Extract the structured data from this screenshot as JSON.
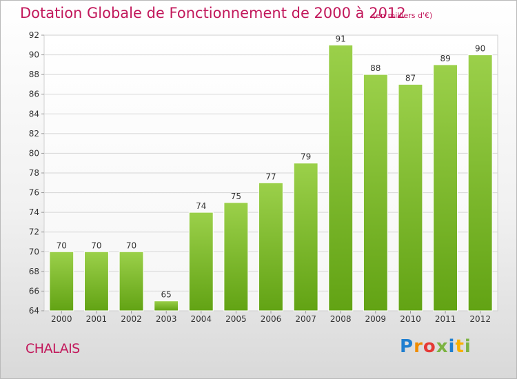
{
  "header": {
    "title": "Dotation Globale de Fonctionnement de 2000 à 2012",
    "subtitle": "(en milliers d'€)"
  },
  "footer": {
    "commune": "CHALAIS",
    "logo_text": [
      "P",
      "r",
      "o",
      "x",
      "i",
      "t",
      "i"
    ]
  },
  "colors": {
    "title": "#c2185b",
    "bar_top": "#9bd04a",
    "bar_bottom": "#62a314",
    "grid": "#d6d6d6",
    "axis_text": "#333333"
  },
  "chart_data": {
    "type": "bar",
    "title": "Dotation Globale de Fonctionnement de 2000 à 2012",
    "subtitle": "(en milliers d'€)",
    "categories": [
      "2000",
      "2001",
      "2002",
      "2003",
      "2004",
      "2005",
      "2006",
      "2007",
      "2008",
      "2009",
      "2010",
      "2011",
      "2012"
    ],
    "values": [
      70,
      70,
      70,
      65,
      74,
      75,
      77,
      79,
      91,
      88,
      87,
      89,
      90
    ],
    "ylim": [
      64,
      92
    ],
    "yticks": [
      64,
      66,
      68,
      70,
      72,
      74,
      76,
      78,
      80,
      82,
      84,
      86,
      88,
      90,
      92
    ],
    "grid": true,
    "data_labels": true,
    "legend": "none"
  }
}
